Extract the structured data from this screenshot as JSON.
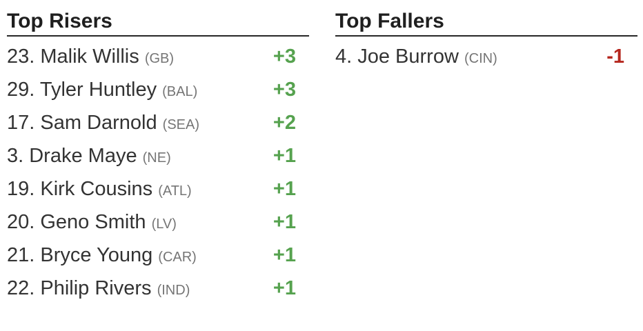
{
  "colors": {
    "background": "#ffffff",
    "heading": "#1f1f1f",
    "divider": "#262626",
    "player": "#333333",
    "team": "#757575",
    "riser": "#56a24f",
    "faller": "#b5271e"
  },
  "columns": [
    {
      "id": "top-risers",
      "title": "Top Risers",
      "direction": "up",
      "items": [
        {
          "rank": "23.",
          "name": "Malik Willis",
          "team": "(GB)",
          "change": "+3"
        },
        {
          "rank": "29.",
          "name": "Tyler Huntley",
          "team": "(BAL)",
          "change": "+3"
        },
        {
          "rank": "17.",
          "name": "Sam Darnold",
          "team": "(SEA)",
          "change": "+2"
        },
        {
          "rank": "3.",
          "name": "Drake Maye",
          "team": "(NE)",
          "change": "+1"
        },
        {
          "rank": "19.",
          "name": "Kirk Cousins",
          "team": "(ATL)",
          "change": "+1"
        },
        {
          "rank": "20.",
          "name": "Geno Smith",
          "team": "(LV)",
          "change": "+1"
        },
        {
          "rank": "21.",
          "name": "Bryce Young",
          "team": "(CAR)",
          "change": "+1"
        },
        {
          "rank": "22.",
          "name": "Philip Rivers",
          "team": "(IND)",
          "change": "+1"
        }
      ]
    },
    {
      "id": "top-fallers",
      "title": "Top Fallers",
      "direction": "down",
      "items": [
        {
          "rank": "4.",
          "name": "Joe Burrow",
          "team": "(CIN)",
          "change": "-1"
        }
      ]
    }
  ]
}
